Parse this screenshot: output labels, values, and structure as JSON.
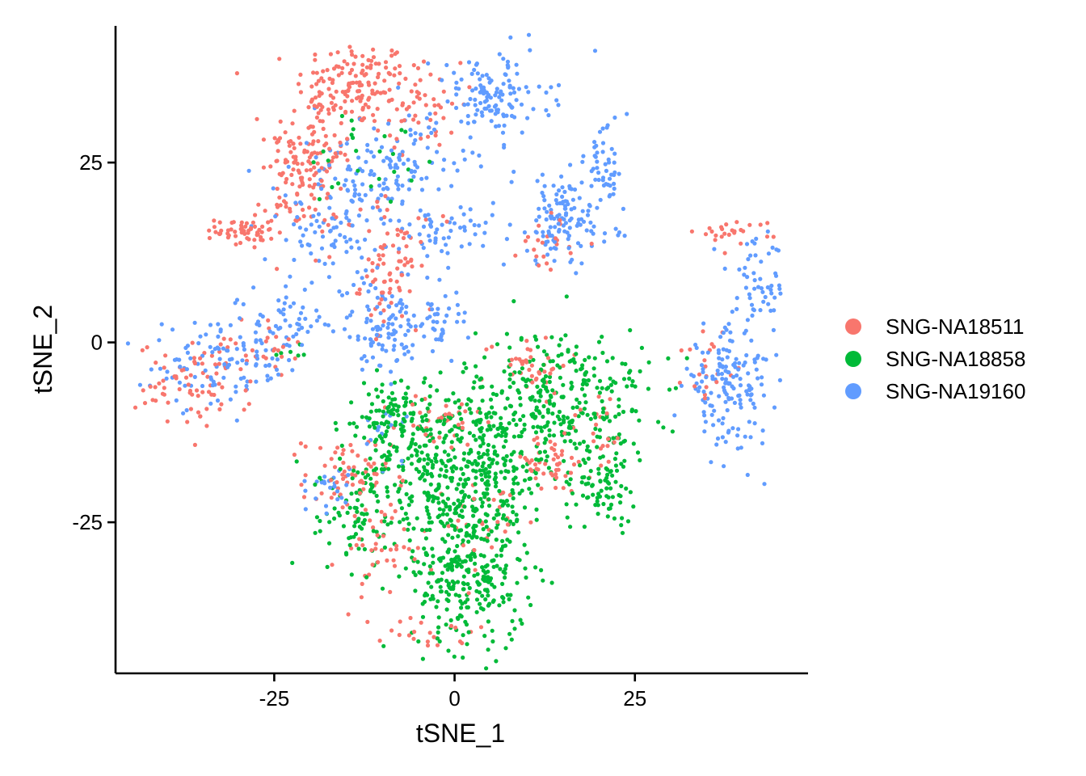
{
  "chart_data": {
    "type": "scatter",
    "title": "",
    "xlabel": "tSNE_1",
    "ylabel": "tSNE_2",
    "xlim": [
      -47,
      49
    ],
    "ylim": [
      -46,
      44
    ],
    "x_ticks": [
      -25,
      0,
      25
    ],
    "y_ticks": [
      25,
      0,
      -25
    ],
    "x_tick_labels": [
      "-25",
      "0",
      "25"
    ],
    "y_tick_labels": [
      "25",
      "0",
      "-25"
    ],
    "legend_position": "right",
    "grid": false,
    "point_size": "small",
    "series": [
      {
        "name": "SNG-NA18511",
        "color": "#F8766D",
        "clusters": [
          {
            "cx": -14,
            "cy": 36,
            "sx": 4,
            "sy": 3,
            "n": 130
          },
          {
            "cx": -20,
            "cy": 27,
            "sx": 3,
            "sy": 4,
            "n": 110
          },
          {
            "cx": -29,
            "cy": 15.5,
            "sx": 2,
            "sy": 1.2,
            "n": 55
          },
          {
            "cx": -5,
            "cy": 33,
            "sx": 3,
            "sy": 3,
            "n": 55
          },
          {
            "cx": -22,
            "cy": 20,
            "sx": 3,
            "sy": 3,
            "n": 50
          },
          {
            "cx": -9,
            "cy": 8,
            "sx": 2,
            "sy": 3,
            "n": 45
          },
          {
            "cx": -8,
            "cy": 14,
            "sx": 4,
            "sy": 3,
            "n": 35
          },
          {
            "cx": -36,
            "cy": -6,
            "sx": 4,
            "sy": 3,
            "n": 70
          },
          {
            "cx": -28,
            "cy": -1,
            "sx": 3,
            "sy": 2,
            "n": 30
          },
          {
            "cx": 13,
            "cy": 14,
            "sx": 2,
            "sy": 2,
            "n": 22
          },
          {
            "cx": 39,
            "cy": 15.5,
            "sx": 3,
            "sy": 0.8,
            "n": 25
          },
          {
            "cx": 35,
            "cy": -3,
            "sx": 1.5,
            "sy": 3,
            "n": 20
          },
          {
            "cx": -15,
            "cy": -19,
            "sx": 3,
            "sy": 3,
            "n": 60
          },
          {
            "cx": 13,
            "cy": -17,
            "sx": 3,
            "sy": 2,
            "n": 50
          },
          {
            "cx": -10,
            "cy": -29,
            "sx": 3,
            "sy": 4,
            "n": 45
          },
          {
            "cx": -2,
            "cy": -11,
            "sx": 3,
            "sy": 2,
            "n": 35
          },
          {
            "cx": 10,
            "cy": -3,
            "sx": 3,
            "sy": 2,
            "n": 40
          },
          {
            "cx": -3,
            "cy": -40,
            "sx": 3,
            "sy": 1.5,
            "n": 22
          },
          {
            "cx": 5,
            "cy": -25,
            "sx": 3,
            "sy": 3,
            "n": 25
          },
          {
            "cx": 20,
            "cy": -12,
            "sx": 2,
            "sy": 3,
            "n": 20
          }
        ]
      },
      {
        "name": "SNG-NA18858",
        "color": "#00BA38",
        "clusters": [
          {
            "cx": 0,
            "cy": -18,
            "sx": 7,
            "sy": 6,
            "n": 520
          },
          {
            "cx": 2,
            "cy": -33,
            "sx": 4,
            "sy": 5,
            "n": 260
          },
          {
            "cx": 15,
            "cy": -8,
            "sx": 6,
            "sy": 5,
            "n": 320
          },
          {
            "cx": -9,
            "cy": -11,
            "sx": 4,
            "sy": 3,
            "n": 90
          },
          {
            "cx": 21,
            "cy": -20,
            "sx": 2,
            "sy": 2.5,
            "n": 70
          },
          {
            "cx": -14,
            "cy": -25,
            "sx": 3,
            "sy": 3,
            "n": 55
          },
          {
            "cx": -11,
            "cy": 26,
            "sx": 5,
            "sy": 4,
            "n": 25
          },
          {
            "cx": -22,
            "cy": -1,
            "sx": 1.5,
            "sy": 1,
            "n": 6
          }
        ]
      },
      {
        "name": "SNG-NA19160",
        "color": "#619CFF",
        "clusters": [
          {
            "cx": 5,
            "cy": 34,
            "sx": 4,
            "sy": 3,
            "n": 130
          },
          {
            "cx": -10,
            "cy": 23,
            "sx": 6,
            "sy": 4,
            "n": 160
          },
          {
            "cx": 15,
            "cy": 17,
            "sx": 3.5,
            "sy": 3,
            "n": 130
          },
          {
            "cx": 21,
            "cy": 25,
            "sx": 1.5,
            "sy": 3,
            "n": 45
          },
          {
            "cx": 38,
            "cy": -6,
            "sx": 3,
            "sy": 4,
            "n": 160
          },
          {
            "cx": 42,
            "cy": 8,
            "sx": 2,
            "sy": 3,
            "n": 50
          },
          {
            "cx": -32,
            "cy": -3,
            "sx": 5,
            "sy": 3,
            "n": 110
          },
          {
            "cx": -23,
            "cy": 3,
            "sx": 2.5,
            "sy": 2,
            "n": 45
          },
          {
            "cx": -10,
            "cy": 2,
            "sx": 3,
            "sy": 3,
            "n": 100
          },
          {
            "cx": -2,
            "cy": 3,
            "sx": 2,
            "sy": 2,
            "n": 40
          },
          {
            "cx": -18,
            "cy": 14,
            "sx": 3,
            "sy": 3,
            "n": 60
          },
          {
            "cx": -1,
            "cy": 15,
            "sx": 3,
            "sy": 2,
            "n": 45
          },
          {
            "cx": -17,
            "cy": -20,
            "sx": 1.5,
            "sy": 2,
            "n": 25
          },
          {
            "cx": -10,
            "cy": -13,
            "sx": 2,
            "sy": 2,
            "n": 14
          }
        ]
      }
    ]
  }
}
